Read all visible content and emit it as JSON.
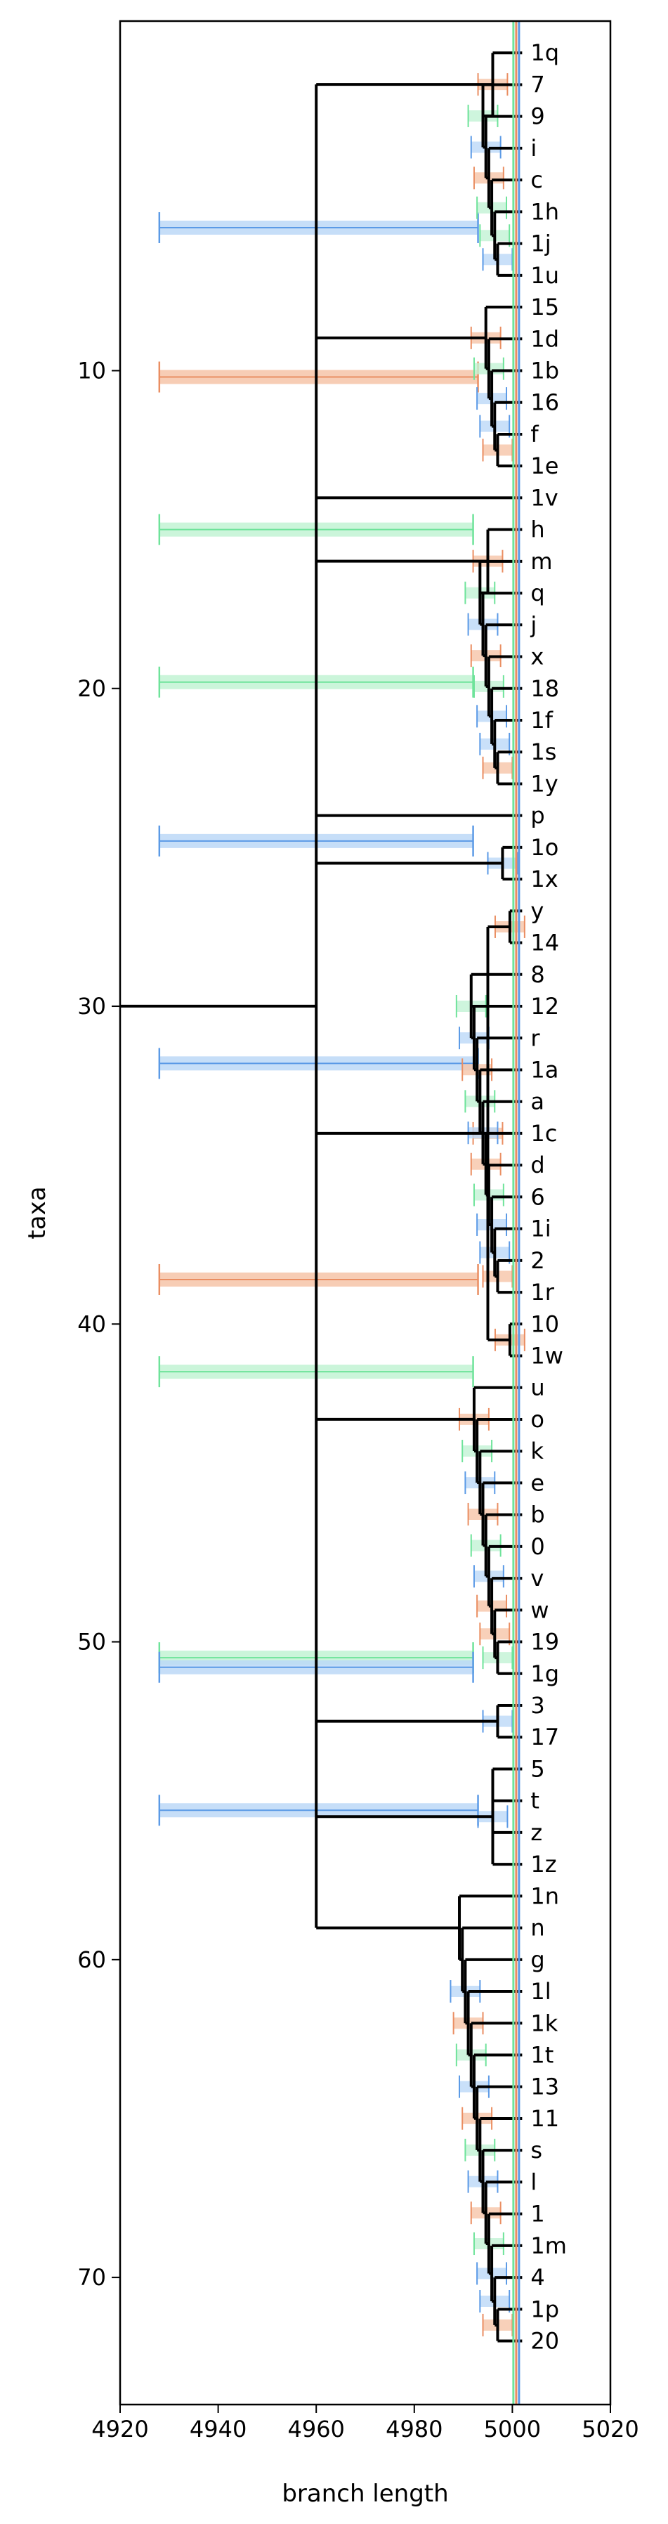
{
  "chart_data": {
    "type": "phylogenetic-tree",
    "xlabel": "branch length",
    "ylabel": "taxa",
    "xlim": [
      4920,
      5020
    ],
    "ylim": [
      74,
      -1
    ],
    "x_ticks": [
      4920,
      4940,
      4960,
      4980,
      5000,
      5020
    ],
    "y_ticks": [
      10,
      20,
      30,
      40,
      50,
      60,
      70
    ],
    "leaves": [
      "1q",
      "7",
      "9",
      "i",
      "c",
      "1h",
      "1j",
      "1u",
      "15",
      "1d",
      "1b",
      "16",
      "f",
      "1e",
      "1v",
      "h",
      "m",
      "q",
      "j",
      "x",
      "18",
      "1f",
      "1s",
      "1y",
      "p",
      "1o",
      "1x",
      "y",
      "14",
      "8",
      "12",
      "r",
      "1a",
      "a",
      "1c",
      "d",
      "6",
      "1i",
      "2",
      "1r",
      "10",
      "1w",
      "u",
      "o",
      "k",
      "e",
      "b",
      "0",
      "v",
      "w",
      "19",
      "1g",
      "3",
      "17",
      "5",
      "t",
      "z",
      "1z",
      "1n",
      "n",
      "g",
      "1l",
      "1k",
      "1t",
      "13",
      "11",
      "s",
      "l",
      "1",
      "1m",
      "4",
      "1p",
      "20"
    ],
    "reference_line_x": 5000.5,
    "colors": {
      "branch": "#000000",
      "blue": "#5b9ae6",
      "orange": "#ea8e62",
      "green": "#6ee39a",
      "blue_fill": "#bcd8f7",
      "orange_fill": "#f6c4a8",
      "green_fill": "#c2f3d4"
    },
    "error_bars": [
      {
        "y": 5.5,
        "x_from": 4928,
        "x_to": 4993,
        "color": "blue"
      },
      {
        "y": 10.2,
        "x_from": 4928,
        "x_to": 4993,
        "color": "orange"
      },
      {
        "y": 15.0,
        "x_from": 4928,
        "x_to": 4992,
        "color": "green"
      },
      {
        "y": 19.8,
        "x_from": 4928,
        "x_to": 4992,
        "color": "green"
      },
      {
        "y": 24.8,
        "x_from": 4928,
        "x_to": 4992,
        "color": "blue"
      },
      {
        "y": 31.8,
        "x_from": 4928,
        "x_to": 4993,
        "color": "blue"
      },
      {
        "y": 38.6,
        "x_from": 4928,
        "x_to": 4993,
        "color": "orange"
      },
      {
        "y": 41.5,
        "x_from": 4928,
        "x_to": 4992,
        "color": "green"
      },
      {
        "y": 50.5,
        "x_from": 4928,
        "x_to": 4992,
        "color": "green"
      },
      {
        "y": 50.8,
        "x_from": 4928,
        "x_to": 4992,
        "color": "blue"
      },
      {
        "y": 55.3,
        "x_from": 4928,
        "x_to": 4993,
        "color": "blue"
      }
    ]
  }
}
